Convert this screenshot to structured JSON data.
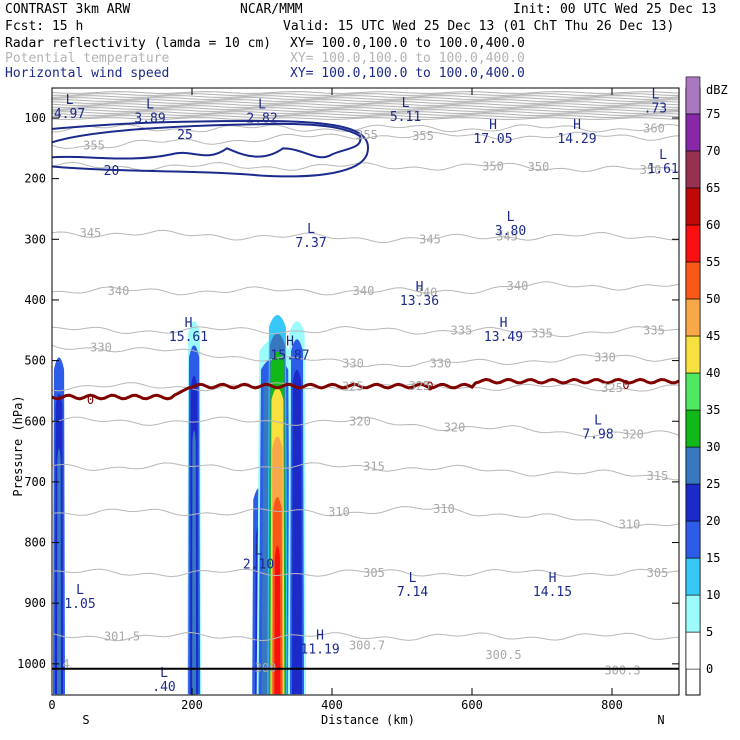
{
  "header": {
    "model": "CONTRAST  3km ARW",
    "org": "NCAR/MMM",
    "init": "Init: 00 UTC Wed 25 Dec 13",
    "fcst": "Fcst:   15 h",
    "valid": "Valid: 15 UTC Wed 25 Dec 13 (01 ChT Thu 26 Dec 13)",
    "fields": [
      {
        "name": "Radar reflectivity (lamda = 10 cm)",
        "xy": "XY= 100.0,100.0 to 100.0,400.0",
        "color": "#000000"
      },
      {
        "name": "Potential temperature",
        "xy": "XY= 100.0,100.0 to 100.0,400.0",
        "color": "#b4b4b4"
      },
      {
        "name": "Horizontal wind speed",
        "xy": "XY= 100.0,100.0 to 100.0,400.0",
        "color": "#1c2a8c"
      }
    ]
  },
  "chart_data": {
    "type": "cross-section",
    "xlabel": "Distance (km)",
    "ylabel": "Pressure (hPa)",
    "xlim": [
      0,
      900
    ],
    "ylim": [
      1050,
      55
    ],
    "x_ticks": [
      0,
      200,
      400,
      600,
      800
    ],
    "y_ticks": [
      100,
      200,
      300,
      400,
      500,
      600,
      700,
      800,
      900,
      1000
    ],
    "x_end_labels": {
      "left": "S",
      "right": "N"
    },
    "colorbar": {
      "title": "dBZ",
      "levels": [
        0,
        5,
        10,
        15,
        20,
        25,
        30,
        35,
        40,
        45,
        50,
        55,
        60,
        65,
        70,
        75
      ],
      "colors": [
        "#ffffff",
        "#9cfcfc",
        "#38c8f8",
        "#2c5ce8",
        "#1c2ac8",
        "#3878c0",
        "#10b818",
        "#50e860",
        "#f8e040",
        "#f8a848",
        "#f85818",
        "#f81010",
        "#c00808",
        "#983050",
        "#8828a8",
        "#a878c0"
      ]
    },
    "theta_contours": [
      {
        "value": 355,
        "labels": [
          {
            "x": 60,
            "p": 145
          },
          {
            "x": 450,
            "p": 128
          },
          {
            "x": 530,
            "p": 130
          }
        ]
      },
      {
        "value": 360,
        "labels": [
          {
            "x": 860,
            "p": 117
          }
        ]
      },
      {
        "value": 350,
        "labels": [
          {
            "x": 630,
            "p": 180
          },
          {
            "x": 695,
            "p": 181
          },
          {
            "x": 855,
            "p": 186
          }
        ]
      },
      {
        "value": 345,
        "labels": [
          {
            "x": 55,
            "p": 290
          },
          {
            "x": 540,
            "p": 300
          },
          {
            "x": 650,
            "p": 295
          }
        ]
      },
      {
        "value": 340,
        "labels": [
          {
            "x": 95,
            "p": 385
          },
          {
            "x": 445,
            "p": 385
          },
          {
            "x": 535,
            "p": 388
          },
          {
            "x": 665,
            "p": 377
          }
        ]
      },
      {
        "value": 335,
        "labels": [
          {
            "x": 585,
            "p": 450
          },
          {
            "x": 700,
            "p": 455
          },
          {
            "x": 860,
            "p": 450
          }
        ]
      },
      {
        "value": 330,
        "labels": [
          {
            "x": 70,
            "p": 478
          },
          {
            "x": 430,
            "p": 505
          },
          {
            "x": 555,
            "p": 505
          },
          {
            "x": 790,
            "p": 495
          }
        ]
      },
      {
        "value": 325,
        "labels": [
          {
            "x": 430,
            "p": 543
          },
          {
            "x": 525,
            "p": 542
          },
          {
            "x": 800,
            "p": 545
          }
        ]
      },
      {
        "value": 320,
        "labels": [
          {
            "x": 440,
            "p": 600
          },
          {
            "x": 575,
            "p": 610
          },
          {
            "x": 830,
            "p": 622
          }
        ]
      },
      {
        "value": 315,
        "labels": [
          {
            "x": 460,
            "p": 675
          },
          {
            "x": 865,
            "p": 690
          }
        ]
      },
      {
        "value": 310,
        "labels": [
          {
            "x": 410,
            "p": 750
          },
          {
            "x": 560,
            "p": 745
          },
          {
            "x": 825,
            "p": 770
          }
        ]
      },
      {
        "value": 305,
        "labels": [
          {
            "x": 460,
            "p": 850
          },
          {
            "x": 865,
            "p": 850
          }
        ]
      },
      {
        "value": 301.5,
        "labels": [
          {
            "x": 100,
            "p": 955
          }
        ]
      },
      {
        "value": 300.7,
        "labels": [
          {
            "x": 450,
            "p": 970
          }
        ]
      },
      {
        "value": 300.5,
        "labels": [
          {
            "x": 645,
            "p": 985
          }
        ]
      },
      {
        "value": 300.3,
        "labels": [
          {
            "x": 815,
            "p": 1011
          }
        ]
      },
      {
        "value": 300.0,
        "labels": [
          {
            "x": 305,
            "p": 1007
          }
        ]
      },
      {
        "value": 4,
        "labels": [
          {
            "x": 20,
            "p": 1000
          }
        ]
      }
    ],
    "freezing_level": {
      "label": "0",
      "color": "#800000"
    },
    "wind_contours": [
      {
        "value": 25,
        "label": {
          "x": 190,
          "p": 128
        }
      },
      {
        "value": 20,
        "label": {
          "x": 85,
          "p": 187
        }
      }
    ],
    "wind_extrema": [
      {
        "type": "L",
        "value": "4.97",
        "x": 25,
        "p": 77
      },
      {
        "type": "L",
        "value": "3.89",
        "x": 140,
        "p": 84
      },
      {
        "type": "L",
        "value": "2.82",
        "x": 300,
        "p": 84
      },
      {
        "type": "L",
        "value": "5.11",
        "x": 505,
        "p": 82
      },
      {
        "type": "L",
        "value": ".73",
        "x": 862,
        "p": 68
      },
      {
        "type": "H",
        "value": "17.05",
        "x": 630,
        "p": 118
      },
      {
        "type": "H",
        "value": "14.29",
        "x": 750,
        "p": 118
      },
      {
        "type": "L",
        "value": "1.61",
        "x": 873,
        "p": 168
      },
      {
        "type": "L",
        "value": "7.37",
        "x": 370,
        "p": 290
      },
      {
        "type": "L",
        "value": "3.80",
        "x": 655,
        "p": 270
      },
      {
        "type": "H",
        "value": "13.36",
        "x": 525,
        "p": 385
      },
      {
        "type": "H",
        "value": "15.61",
        "x": 195,
        "p": 445
      },
      {
        "type": "H",
        "value": "13.49",
        "x": 645,
        "p": 445
      },
      {
        "type": "H",
        "value": "15.87",
        "x": 340,
        "p": 475
      },
      {
        "type": "L",
        "value": "7.98",
        "x": 780,
        "p": 605
      },
      {
        "type": "L",
        "value": "2.10",
        "x": 295,
        "p": 820
      },
      {
        "type": "L",
        "value": "7.14",
        "x": 515,
        "p": 865
      },
      {
        "type": "H",
        "value": "14.15",
        "x": 715,
        "p": 865
      },
      {
        "type": "L",
        "value": "1.05",
        "x": 40,
        "p": 885
      },
      {
        "type": "H",
        "value": "11.19",
        "x": 383,
        "p": 960
      },
      {
        "type": "L",
        "value": ".40",
        "x": 160,
        "p": 1022
      }
    ]
  }
}
